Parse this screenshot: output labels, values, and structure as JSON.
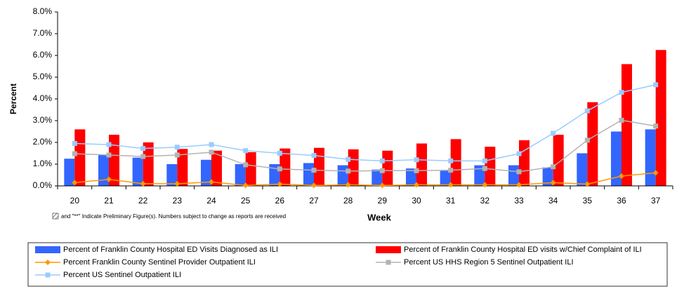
{
  "chart_data": {
    "type": "bar_line",
    "y_label": "Percent",
    "x_label": "Week",
    "note": "and \"**\" Indicate Preliminary Figure(s).  Numbers subject to change as reports are received",
    "categories": [
      "20",
      "21",
      "22",
      "23",
      "24",
      "25",
      "26",
      "27",
      "28",
      "29",
      "30",
      "31",
      "32",
      "33",
      "34",
      "35",
      "36",
      "37"
    ],
    "ylim": [
      0,
      8
    ],
    "yticks": [
      {
        "value": 0,
        "label": "0.0%"
      },
      {
        "value": 1,
        "label": "1.0%"
      },
      {
        "value": 2,
        "label": "2.0%"
      },
      {
        "value": 3,
        "label": "3.0%"
      },
      {
        "value": 4,
        "label": "4.0%"
      },
      {
        "value": 5,
        "label": "5.0%"
      },
      {
        "value": 6,
        "label": "6.0%"
      },
      {
        "value": 7,
        "label": "7.0%"
      },
      {
        "value": 8,
        "label": "8.0%"
      }
    ],
    "grid": false,
    "series": [
      {
        "name": "Percent of Franklin County Hospital ED Visits Diagnosed as ILI",
        "kind": "bar",
        "color": "#3366ff",
        "values": [
          1.25,
          1.45,
          1.3,
          1.0,
          1.2,
          1.0,
          1.0,
          1.05,
          0.95,
          0.75,
          0.8,
          0.7,
          0.95,
          0.95,
          0.85,
          1.5,
          2.5,
          2.6
        ]
      },
      {
        "name": "Percent of Franklin County Hospital ED visits w/Chief Complaint of ILI",
        "kind": "bar",
        "color": "#ff0000",
        "values": [
          2.6,
          2.35,
          2.0,
          1.7,
          1.62,
          1.55,
          1.72,
          1.75,
          1.68,
          1.62,
          1.95,
          2.15,
          1.8,
          2.1,
          2.35,
          3.85,
          5.6,
          6.25
        ]
      },
      {
        "name": "Percent Franklin County Sentinel Provider Outpatient ILI",
        "kind": "line",
        "marker": "diamond",
        "color": "#ff9900",
        "values": [
          0.15,
          0.3,
          0.1,
          0.1,
          0.18,
          0.02,
          0.08,
          0.02,
          0.05,
          0.02,
          0.05,
          0.05,
          0.05,
          0.05,
          0.15,
          0.08,
          0.45,
          0.6
        ]
      },
      {
        "name": "Percent US HHS Region 5 Sentinel Outpatient ILI",
        "kind": "line",
        "marker": "square",
        "color": "#b3b3b3",
        "values": [
          1.48,
          1.42,
          1.35,
          1.42,
          1.55,
          0.97,
          0.78,
          0.72,
          0.68,
          0.7,
          0.7,
          0.72,
          0.8,
          0.65,
          0.88,
          2.1,
          3.02,
          2.75
        ]
      },
      {
        "name": "Percent US Sentinel Outpatient ILI",
        "kind": "line",
        "marker": "square",
        "color": "#99ccff",
        "values": [
          1.95,
          1.9,
          1.72,
          1.78,
          1.9,
          1.62,
          1.5,
          1.4,
          1.22,
          1.15,
          1.2,
          1.15,
          1.15,
          1.48,
          2.42,
          3.45,
          4.3,
          4.65
        ]
      }
    ]
  }
}
